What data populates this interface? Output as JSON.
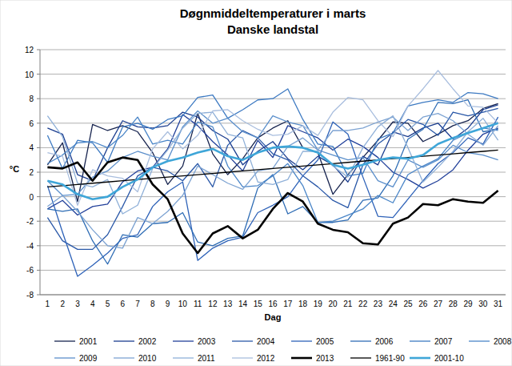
{
  "chart_data": {
    "type": "line",
    "title": "Døgnmiddeltemperaturer i marts",
    "subtitle": "Danske landstal",
    "x_label": "Dag",
    "y_label": "°C",
    "categories": [
      "1",
      "2",
      "3",
      "4",
      "5",
      "6",
      "7",
      "8",
      "9",
      "10",
      "11",
      "12",
      "13",
      "14",
      "15",
      "16",
      "17",
      "18",
      "19",
      "20",
      "21",
      "22",
      "23",
      "24",
      "25",
      "26",
      "27",
      "28",
      "29",
      "30",
      "31"
    ],
    "ylim": [
      -8,
      12
    ],
    "yticks": [
      -8,
      -6,
      -4,
      -2,
      0,
      2,
      4,
      6,
      8,
      10,
      12
    ],
    "grid": true,
    "legend": "bottom",
    "series": [
      {
        "name": "2001",
        "color": "#17244f",
        "line_style": "solid",
        "values": [
          2.6,
          4.4,
          -0.4,
          5.9,
          5.4,
          5.8,
          5.3,
          3.6,
          1.0,
          2.5,
          6.8,
          3.5,
          1.8,
          3.1,
          4.8,
          5.6,
          6.2,
          4.0,
          3.6,
          0.2,
          1.8,
          3.2,
          4.6,
          6.1,
          6.0,
          4.5,
          5.1,
          5.8,
          6.2,
          7.2,
          7.6
        ]
      },
      {
        "name": "2002",
        "color": "#1b3d8f",
        "line_style": "solid",
        "values": [
          5.6,
          5.1,
          1.8,
          1.3,
          4.0,
          6.2,
          5.7,
          5.6,
          5.8,
          6.9,
          6.5,
          5.4,
          4.7,
          2.6,
          3.7,
          4.5,
          3.1,
          2.2,
          3.3,
          2.6,
          1.2,
          3.3,
          2.6,
          5.3,
          4.9,
          5.6,
          6.0,
          4.7,
          5.6,
          7.1,
          7.5
        ]
      },
      {
        "name": "2003",
        "color": "#22409a",
        "line_style": "solid",
        "values": [
          -1.0,
          -0.3,
          -1.5,
          -0.8,
          -0.6,
          1.2,
          2.1,
          2.4,
          3.9,
          6.7,
          5.8,
          4.5,
          3.4,
          2.1,
          4.6,
          3.2,
          5.8,
          5.3,
          4.8,
          3.8,
          4.7,
          4.1,
          3.2,
          2.0,
          1.4,
          0.7,
          1.3,
          2.2,
          3.8,
          5.1,
          5.6
        ]
      },
      {
        "name": "2004",
        "color": "#2a58a8",
        "line_style": "solid",
        "values": [
          -1.7,
          -3.6,
          -4.3,
          -4.3,
          -3.1,
          -0.8,
          1.7,
          2.4,
          2.1,
          1.3,
          2.7,
          0.8,
          4.2,
          5.4,
          4.8,
          3.5,
          3.0,
          1.7,
          0.8,
          -0.3,
          -0.9,
          2.6,
          4.3,
          5.2,
          6.3,
          5.9,
          5.0,
          6.9,
          6.6,
          6.9,
          7.2
        ]
      },
      {
        "name": "2005",
        "color": "#2e62b8",
        "line_style": "solid",
        "values": [
          0.9,
          -2.9,
          -6.5,
          -5.6,
          -4.6,
          -3.4,
          -3.1,
          -0.8,
          0.4,
          1.2,
          -5.2,
          -4.2,
          -3.6,
          -3.3,
          -1.3,
          -0.7,
          0.0,
          1.7,
          3.0,
          6.1,
          5.1,
          1.6,
          -1.6,
          -1.7,
          -0.2,
          1.3,
          2.7,
          3.6,
          4.8,
          4.3,
          6.5
        ]
      },
      {
        "name": "2006",
        "color": "#2f6db5",
        "line_style": "solid",
        "values": [
          -1.0,
          -1.2,
          -1.0,
          -3.6,
          -5.5,
          -3.1,
          -3.3,
          -2.2,
          -2.1,
          -1.3,
          -3.7,
          -4.0,
          -3.4,
          -3.2,
          0.7,
          1.8,
          -1.4,
          -0.8,
          -2.1,
          -2.1,
          -1.9,
          -0.3,
          -0.1,
          1.7,
          4.7,
          5.5,
          7.7,
          7.6,
          7.9,
          5.3,
          5.5
        ]
      },
      {
        "name": "2007",
        "color": "#3d7ac2",
        "line_style": "solid",
        "values": [
          5.0,
          2.3,
          4.6,
          4.4,
          2.8,
          5.7,
          6.0,
          5.5,
          6.3,
          6.6,
          8.1,
          8.3,
          6.4,
          7.1,
          7.9,
          8.0,
          8.8,
          6.3,
          4.3,
          4.1,
          1.7,
          1.9,
          4.7,
          5.2,
          7.4,
          7.7,
          7.9,
          7.7,
          8.5,
          8.4,
          8.0
        ]
      },
      {
        "name": "2008",
        "color": "#4b86c8",
        "line_style": "solid",
        "values": [
          2.7,
          3.4,
          4.4,
          4.5,
          4.0,
          5.0,
          6.5,
          4.3,
          4.6,
          4.3,
          6.1,
          5.7,
          2.5,
          0.8,
          0.9,
          1.7,
          2.7,
          0.9,
          -2.1,
          -2.0,
          -1.5,
          -1.0,
          0.1,
          -0.5,
          1.8,
          2.5,
          3.1,
          4.6,
          5.2,
          5.6,
          5.4
        ]
      },
      {
        "name": "2009",
        "color": "#5b8fcb",
        "line_style": "solid",
        "values": [
          1.3,
          0.1,
          0.2,
          1.6,
          2.1,
          3.2,
          3.7,
          3.3,
          3.0,
          5.7,
          7.0,
          6.0,
          6.4,
          5.3,
          4.8,
          6.6,
          6.1,
          5.8,
          3.8,
          3.4,
          3.0,
          3.2,
          1.3,
          0.8,
          3.0,
          2.4,
          3.0,
          4.2,
          3.6,
          3.4,
          3.0
        ]
      },
      {
        "name": "2010",
        "color": "#7da3d2",
        "line_style": "solid",
        "values": [
          -0.8,
          0.1,
          -1.2,
          -2.7,
          -4.0,
          -4.2,
          -1.7,
          -2.2,
          -1.2,
          0.1,
          2.5,
          1.8,
          1.1,
          0.6,
          2.1,
          2.3,
          4.1,
          4.8,
          3.8,
          5.4,
          5.4,
          5.6,
          6.1,
          6.5,
          5.4,
          6.5,
          6.8,
          6.2,
          5.1,
          4.2,
          5.8
        ]
      },
      {
        "name": "2011",
        "color": "#8fb0d8",
        "line_style": "solid",
        "values": [
          6.6,
          4.9,
          1.1,
          0.8,
          1.4,
          -1.4,
          -0.7,
          2.3,
          3.8,
          5.6,
          6.8,
          6.9,
          5.1,
          4.8,
          1.2,
          1.0,
          1.4,
          3.7,
          3.7,
          2.5,
          1.6,
          4.0,
          5.7,
          6.6,
          4.0,
          1.2,
          2.4,
          3.7,
          5.3,
          6.4,
          4.6
        ]
      },
      {
        "name": "2012",
        "color": "#a9bede",
        "line_style": "solid",
        "values": [
          3.6,
          3.3,
          -0.7,
          2.2,
          1.7,
          1.5,
          0.4,
          3.9,
          5.3,
          3.9,
          5.0,
          7.0,
          7.1,
          6.2,
          5.5,
          5.0,
          5.1,
          5.8,
          5.0,
          6.9,
          8.1,
          7.9,
          6.2,
          4.9,
          7.4,
          8.8,
          10.3,
          8.8,
          7.4,
          7.3,
          6.0
        ]
      },
      {
        "name": "2013",
        "color": "#000000",
        "line_style": "thick",
        "values": [
          2.4,
          2.3,
          2.8,
          1.3,
          2.8,
          3.2,
          3.0,
          1.0,
          -0.2,
          -3.0,
          -4.6,
          -3.0,
          -2.4,
          -3.4,
          -2.7,
          -1.0,
          0.3,
          -0.4,
          -2.2,
          -2.7,
          -2.9,
          -3.8,
          -3.9,
          -2.2,
          -1.7,
          -0.6,
          -0.7,
          -0.2,
          -0.4,
          -0.5,
          0.5
        ]
      },
      {
        "name": "1961-90",
        "color": "#000000",
        "line_style": "solid",
        "values": [
          0.8,
          0.9,
          1.0,
          1.1,
          1.2,
          1.3,
          1.4,
          1.5,
          1.6,
          1.7,
          1.8,
          1.9,
          2.0,
          2.1,
          2.2,
          2.3,
          2.4,
          2.5,
          2.6,
          2.7,
          2.8,
          2.9,
          3.0,
          3.1,
          3.2,
          3.3,
          3.4,
          3.5,
          3.6,
          3.7,
          3.8
        ]
      },
      {
        "name": "2001-10",
        "color": "#3fa6d8",
        "line_style": "thick",
        "values": [
          1.3,
          1.0,
          0.2,
          -0.2,
          0.0,
          0.8,
          1.4,
          2.4,
          2.9,
          3.2,
          3.6,
          3.9,
          3.3,
          3.0,
          3.6,
          4.0,
          4.1,
          4.0,
          3.6,
          2.6,
          2.3,
          2.6,
          3.0,
          3.2,
          3.1,
          3.4,
          4.3,
          4.8,
          5.2,
          5.6,
          6.0
        ]
      }
    ]
  }
}
